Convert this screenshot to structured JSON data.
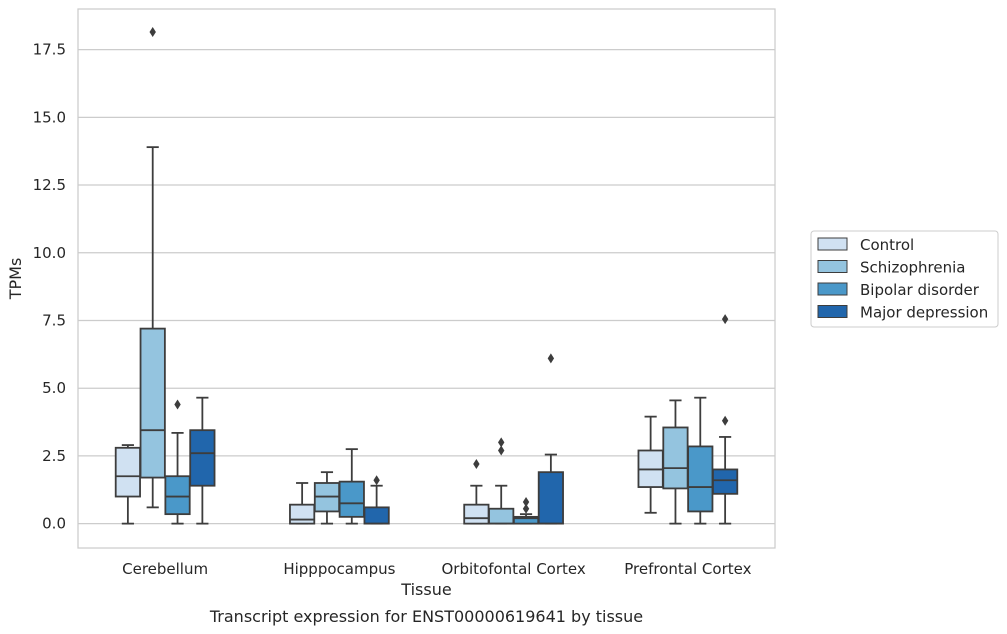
{
  "caption": "Transcript expression for ENST00000619641 by tissue",
  "chart_data": {
    "type": "boxplot",
    "xlabel": "Tissue",
    "ylabel": "TPMs",
    "ylim": [
      -0.9,
      19.0
    ],
    "yticks": [
      0.0,
      2.5,
      5.0,
      7.5,
      10.0,
      12.5,
      15.0,
      17.5
    ],
    "ytick_labels": [
      "0.0",
      "2.5",
      "5.0",
      "7.5",
      "10.0",
      "12.5",
      "15.0",
      "17.5"
    ],
    "grid": "horizontal",
    "legend_position": "right",
    "categories": [
      "Cerebellum",
      "Hipppocampus",
      "Orbitofontal Cortex",
      "Prefrontal Cortex"
    ],
    "series": [
      {
        "name": "Control",
        "color": "#d0e1f2",
        "boxes": [
          {
            "whislo": 0.0,
            "q1": 1.0,
            "median": 1.75,
            "q3": 2.8,
            "whishi": 2.9,
            "fliers": []
          },
          {
            "whislo": 0.0,
            "q1": 0.0,
            "median": 0.15,
            "q3": 0.7,
            "whishi": 1.5,
            "fliers": []
          },
          {
            "whislo": 0.0,
            "q1": 0.0,
            "median": 0.2,
            "q3": 0.7,
            "whishi": 1.4,
            "fliers": [
              2.2
            ]
          },
          {
            "whislo": 0.4,
            "q1": 1.35,
            "median": 2.0,
            "q3": 2.7,
            "whishi": 3.95,
            "fliers": []
          }
        ]
      },
      {
        "name": "Schizophrenia",
        "color": "#94c4df",
        "boxes": [
          {
            "whislo": 0.6,
            "q1": 1.7,
            "median": 3.45,
            "q3": 7.2,
            "whishi": 13.9,
            "fliers": [
              18.15
            ]
          },
          {
            "whislo": 0.0,
            "q1": 0.45,
            "median": 1.0,
            "q3": 1.5,
            "whishi": 1.9,
            "fliers": []
          },
          {
            "whislo": 0.0,
            "q1": 0.0,
            "median": 0.0,
            "q3": 0.55,
            "whishi": 1.4,
            "fliers": [
              2.7,
              3.0
            ]
          },
          {
            "whislo": 0.0,
            "q1": 1.3,
            "median": 2.05,
            "q3": 3.55,
            "whishi": 4.55,
            "fliers": []
          }
        ]
      },
      {
        "name": "Bipolar disorder",
        "color": "#4a98c9",
        "boxes": [
          {
            "whislo": 0.0,
            "q1": 0.35,
            "median": 1.0,
            "q3": 1.75,
            "whishi": 3.35,
            "fliers": [
              4.4
            ]
          },
          {
            "whislo": 0.0,
            "q1": 0.25,
            "median": 0.75,
            "q3": 1.55,
            "whishi": 2.75,
            "fliers": []
          },
          {
            "whislo": 0.0,
            "q1": 0.0,
            "median": 0.2,
            "q3": 0.25,
            "whishi": 0.35,
            "fliers": [
              0.55,
              0.8
            ]
          },
          {
            "whislo": 0.0,
            "q1": 0.45,
            "median": 1.35,
            "q3": 2.85,
            "whishi": 4.65,
            "fliers": []
          }
        ]
      },
      {
        "name": "Major depression",
        "color": "#2166ac",
        "boxes": [
          {
            "whislo": 0.0,
            "q1": 1.4,
            "median": 2.6,
            "q3": 3.45,
            "whishi": 4.65,
            "fliers": []
          },
          {
            "whislo": 0.0,
            "q1": 0.0,
            "median": 0.0,
            "q3": 0.6,
            "whishi": 1.4,
            "fliers": [
              1.6
            ]
          },
          {
            "whislo": 0.0,
            "q1": 0.0,
            "median": 0.0,
            "q3": 1.9,
            "whishi": 2.55,
            "fliers": [
              6.1
            ]
          },
          {
            "whislo": 0.0,
            "q1": 1.1,
            "median": 1.6,
            "q3": 2.0,
            "whishi": 3.2,
            "fliers": [
              3.8,
              7.55
            ]
          }
        ]
      }
    ]
  }
}
